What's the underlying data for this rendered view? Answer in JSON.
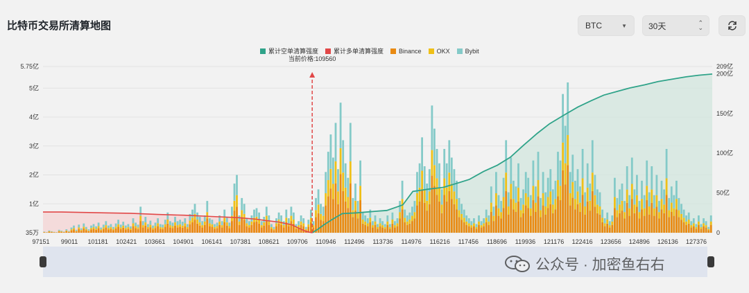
{
  "header": {
    "title": "比特币交易所清算地图"
  },
  "controls": {
    "coin": "BTC",
    "range": "30天"
  },
  "legend": [
    {
      "label": "累计空单清算强度",
      "color": "#2fa389"
    },
    {
      "label": "累计多单清算强度",
      "color": "#e14747"
    },
    {
      "label": "Binance",
      "color": "#e98a12"
    },
    {
      "label": "OKX",
      "color": "#efc018"
    },
    {
      "label": "Bybit",
      "color": "#84cac8"
    }
  ],
  "watermark": {
    "text": "公众号 · 加密鱼右右"
  },
  "chart_data": {
    "type": "bar",
    "title": "比特币交易所清算地图",
    "current_price_label": "当前价格:109560",
    "current_price": 109560,
    "x_tick_labels": [
      "97151",
      "99011",
      "101181",
      "102421",
      "103661",
      "104901",
      "106141",
      "107381",
      "108621",
      "109706",
      "110946",
      "112496",
      "113736",
      "114976",
      "116216",
      "117456",
      "118696",
      "119936",
      "121176",
      "122416",
      "123656",
      "124896",
      "126136",
      "127376"
    ],
    "y_left": {
      "ticks": [
        "35万",
        "1亿",
        "2亿",
        "3亿",
        "4亿",
        "5亿",
        "5.75亿"
      ],
      "range_yi": [
        0.0035,
        5.75
      ]
    },
    "y_right": {
      "ticks": [
        "0",
        "50亿",
        "100亿",
        "150亿",
        "200亿",
        "209亿"
      ],
      "range_yi": [
        0,
        209
      ]
    },
    "bar_heights_yi": [
      0.04,
      0.02,
      0.08,
      0.05,
      0.03,
      0.02,
      0.1,
      0.07,
      0.04,
      0.12,
      0.06,
      0.18,
      0.25,
      0.1,
      0.28,
      0.15,
      0.32,
      0.2,
      0.12,
      0.25,
      0.3,
      0.22,
      0.35,
      0.18,
      0.28,
      0.4,
      0.25,
      0.3,
      0.2,
      0.32,
      0.45,
      0.28,
      0.38,
      0.25,
      0.3,
      0.22,
      0.5,
      0.35,
      0.28,
      0.9,
      0.4,
      0.55,
      0.3,
      0.42,
      0.25,
      0.35,
      0.5,
      0.3,
      0.28,
      0.45,
      0.7,
      0.4,
      0.35,
      0.55,
      0.4,
      0.45,
      0.38,
      0.5,
      0.3,
      0.65,
      0.8,
      1.0,
      0.7,
      0.55,
      0.4,
      0.6,
      1.1,
      0.5,
      0.45,
      0.3,
      0.35,
      0.6,
      0.4,
      0.8,
      0.55,
      0.35,
      0.9,
      1.7,
      2.0,
      0.6,
      1.2,
      1.0,
      0.5,
      0.4,
      0.6,
      0.8,
      0.85,
      0.7,
      0.4,
      0.55,
      0.9,
      0.6,
      0.3,
      0.2,
      0.5,
      0.7,
      0.6,
      0.4,
      0.8,
      0.5,
      0.9,
      0.7,
      0.3,
      0.4,
      0.6,
      0.5,
      0.2,
      0.45,
      0.8,
      0.4,
      1.2,
      1.5,
      1.0,
      0.9,
      2.1,
      2.8,
      3.4,
      2.6,
      3.8,
      2.2,
      4.5,
      3.2,
      2.4,
      1.9,
      3.8,
      1.2,
      1.7,
      1.1,
      2.5,
      0.7,
      0.6,
      0.5,
      0.8,
      0.4,
      0.6,
      0.3,
      0.5,
      0.4,
      0.3,
      0.6,
      0.3,
      0.7,
      0.4,
      0.5,
      1.1,
      1.8,
      0.8,
      0.6,
      0.7,
      0.9,
      1.1,
      2.1,
      2.4,
      3.3,
      2.3,
      1.7,
      2.2,
      4.4,
      3.6,
      2.9,
      2.4,
      1.5,
      2.9,
      2.4,
      3.2,
      2.6,
      2.2,
      1.8,
      1.2,
      1.0,
      0.8,
      0.6,
      0.5,
      0.4,
      0.5,
      0.3,
      0.6,
      0.4,
      0.5,
      0.8,
      0.6,
      1.6,
      0.9,
      2.1,
      1.3,
      1.1,
      1.9,
      3.2,
      1.4,
      2.6,
      1.8,
      1.6,
      2.4,
      1.2,
      1.5,
      2.1,
      1.9,
      1.3,
      2.5,
      1.6,
      2.8,
      1.2,
      2.1,
      1.4,
      1.9,
      2.2,
      1.5,
      1.8,
      2.8,
      2.5,
      4.8,
      3.7,
      5.2,
      2.1,
      2.7,
      1.8,
      2.2,
      1.6,
      2.9,
      1.4,
      2.4,
      1.7,
      3.2,
      2.0,
      1.5,
      1.4,
      0.8,
      0.5,
      0.7,
      0.4,
      0.6,
      1.9,
      1.2,
      1.5,
      1.7,
      1.1,
      2.3,
      1.3,
      2.6,
      1.5,
      2.0,
      1.1,
      1.8,
      1.3,
      2.5,
      1.4,
      2.3,
      1.3,
      2.0,
      1.1,
      1.8,
      1.5,
      2.9,
      1.2,
      1.6,
      1.3,
      1.8,
      1.2,
      1.0,
      0.8,
      0.6,
      0.7,
      0.4,
      0.5,
      0.3,
      0.6,
      0.3,
      0.5,
      0.4,
      0.2,
      0.6
    ],
    "short_cumulative_yi": [
      [
        109560,
        0
      ],
      [
        109800,
        4
      ],
      [
        110100,
        10
      ],
      [
        110500,
        17
      ],
      [
        110946,
        24
      ],
      [
        111600,
        25
      ],
      [
        112496,
        27
      ],
      [
        113000,
        28
      ],
      [
        113736,
        35
      ],
      [
        114200,
        52
      ],
      [
        114976,
        55
      ],
      [
        115600,
        57
      ],
      [
        116216,
        62
      ],
      [
        116800,
        67
      ],
      [
        117456,
        77
      ],
      [
        118100,
        85
      ],
      [
        118696,
        95
      ],
      [
        119300,
        110
      ],
      [
        119936,
        125
      ],
      [
        120500,
        137
      ],
      [
        121176,
        148
      ],
      [
        121800,
        158
      ],
      [
        122416,
        166
      ],
      [
        123000,
        173
      ],
      [
        123656,
        178
      ],
      [
        124200,
        182
      ],
      [
        124896,
        186
      ],
      [
        125500,
        190
      ],
      [
        126136,
        193
      ],
      [
        126800,
        196
      ],
      [
        127376,
        198
      ],
      [
        128000,
        199.5
      ]
    ],
    "long_cumulative_yi": [
      [
        97151,
        26
      ],
      [
        98000,
        26
      ],
      [
        99011,
        25.5
      ],
      [
        100000,
        25
      ],
      [
        101181,
        24.5
      ],
      [
        102421,
        23
      ],
      [
        103661,
        22
      ],
      [
        104901,
        20.5
      ],
      [
        106141,
        19
      ],
      [
        107000,
        17
      ],
      [
        107381,
        15.5
      ],
      [
        108000,
        13.5
      ],
      [
        108621,
        10
      ],
      [
        109000,
        5
      ],
      [
        109300,
        1.5
      ],
      [
        109560,
        0
      ]
    ]
  }
}
